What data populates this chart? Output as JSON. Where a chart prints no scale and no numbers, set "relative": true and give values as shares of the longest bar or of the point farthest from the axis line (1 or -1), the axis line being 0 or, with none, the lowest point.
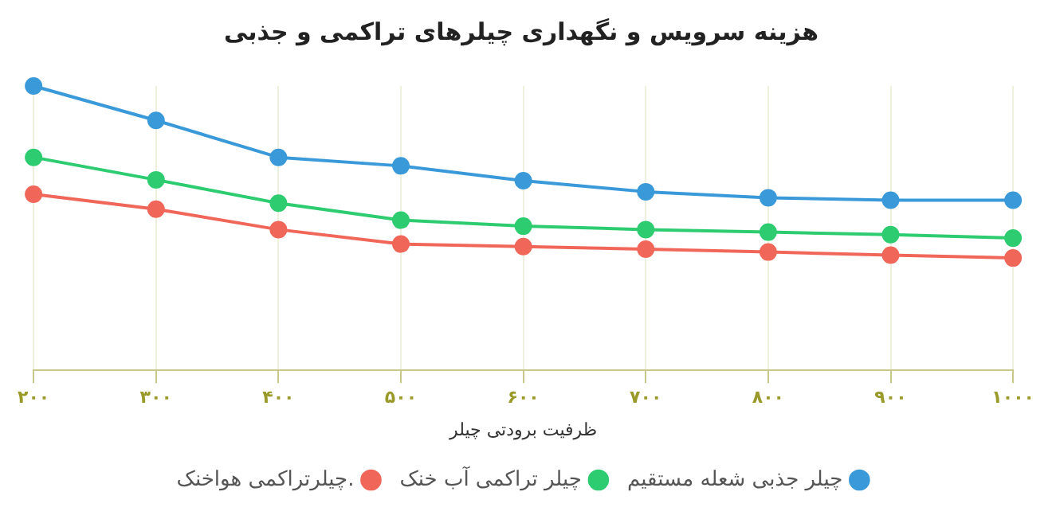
{
  "chart_data": {
    "type": "line",
    "title": "هزینه سرویس و نگهداری چیلرهای تراکمی و جذبی",
    "xlabel": "ظرفیت برودتی چیلر",
    "relative": true,
    "categories": [
      "۲۰۰",
      "۳۰۰",
      "۴۰۰",
      "۵۰۰",
      "۶۰۰",
      "۷۰۰",
      "۸۰۰",
      "۹۰۰",
      "۱۰۰۰"
    ],
    "series": [
      {
        "name": "چیلر جذبی شعله مستقیم",
        "color": "#3a9ad9",
        "values": [
          1,
          0.879,
          0.749,
          0.719,
          0.667,
          0.628,
          0.607,
          0.598,
          0.598
        ]
      },
      {
        "name": "چیلر تراکمی آب خنک",
        "color": "#2ecc71",
        "values": [
          0.749,
          0.67,
          0.588,
          0.528,
          0.507,
          0.495,
          0.486,
          0.477,
          0.465
        ]
      },
      {
        "name": "چیلرتراکمی هواخنک.",
        "color": "#f0675a",
        "values": [
          0.619,
          0.567,
          0.495,
          0.444,
          0.435,
          0.426,
          0.416,
          0.405,
          0.395
        ]
      }
    ],
    "grid": "x",
    "legend": "bottom",
    "marker": "circle",
    "line_style": "solid"
  }
}
